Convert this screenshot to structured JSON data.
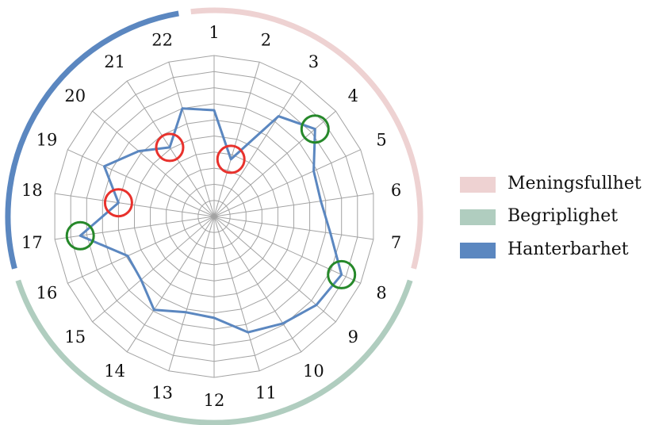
{
  "chart_data": {
    "type": "radar",
    "categories": [
      "1",
      "2",
      "3",
      "4",
      "5",
      "6",
      "7",
      "8",
      "9",
      "10",
      "11",
      "12",
      "13",
      "14",
      "15",
      "16",
      "17",
      "18",
      "19",
      "20",
      "21",
      "22"
    ],
    "rlim": [
      0,
      10
    ],
    "grid": true,
    "series": [
      {
        "name": "Hanterbarhet",
        "color": "#5b87c0",
        "values": [
          6.6,
          3.7,
          7.4,
          8.3,
          6.8,
          6.7,
          7.3,
          8.7,
          8.4,
          7.9,
          7.5,
          6.3,
          6.2,
          6.9,
          6.0,
          5.9,
          8.4,
          6.0,
          7.5,
          6.2,
          5.1,
          7.0
        ]
      }
    ],
    "sector_bands": [
      {
        "name": "Meningsfullhet",
        "color": "#eed2d2",
        "from": 1,
        "to": 7
      },
      {
        "name": "Begriplighet",
        "color": "#b0cdbf",
        "from": 8,
        "to": 16
      },
      {
        "name": "Hanterbarhet",
        "color": "#5b87c0",
        "from": 17,
        "to": 22
      }
    ],
    "highlights": [
      {
        "category": "2",
        "color": "#e8312c"
      },
      {
        "category": "4",
        "color": "#26882a"
      },
      {
        "category": "8",
        "color": "#26882a"
      },
      {
        "category": "17",
        "color": "#26882a"
      },
      {
        "category": "18",
        "color": "#e8312c"
      },
      {
        "category": "21",
        "color": "#e8312c"
      }
    ],
    "legend": {
      "position": "right",
      "items": [
        {
          "label": "Meningsfullhet",
          "color": "#eed2d2"
        },
        {
          "label": "Begriplighet",
          "color": "#b0cdbf"
        },
        {
          "label": "Hanterbarhet",
          "color": "#5b87c0"
        }
      ]
    }
  }
}
